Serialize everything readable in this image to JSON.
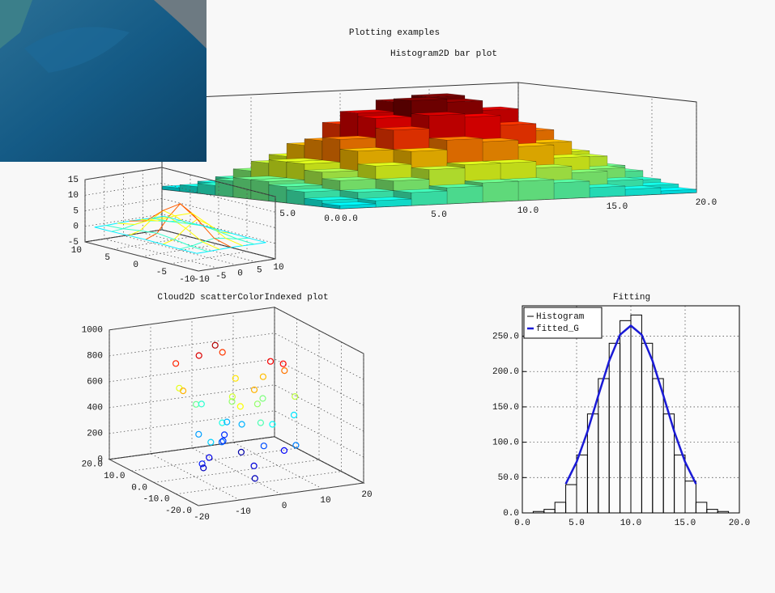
{
  "title": "Plotting examples",
  "chart_data": [
    {
      "type": "bar3d",
      "title": "Histogram2D bar plot",
      "x_bins": [
        0,
        2,
        4,
        6,
        8,
        10,
        12,
        14,
        16,
        18,
        20
      ],
      "y_bins": [
        0,
        2,
        4,
        6,
        8,
        10,
        12,
        14,
        16,
        18,
        20
      ],
      "values": [
        [
          1,
          2,
          4,
          5,
          6,
          6,
          5,
          3,
          2,
          1
        ],
        [
          2,
          4,
          7,
          10,
          11,
          11,
          9,
          7,
          4,
          2
        ],
        [
          4,
          7,
          11,
          15,
          18,
          17,
          15,
          11,
          7,
          3
        ],
        [
          5,
          9,
          15,
          21,
          25,
          24,
          21,
          15,
          10,
          5
        ],
        [
          6,
          11,
          18,
          24,
          29,
          28,
          25,
          18,
          11,
          6
        ],
        [
          6,
          11,
          17,
          25,
          28,
          29,
          24,
          17,
          11,
          6
        ],
        [
          5,
          10,
          15,
          21,
          24,
          25,
          21,
          15,
          9,
          5
        ],
        [
          3,
          7,
          11,
          15,
          17,
          18,
          15,
          11,
          7,
          4
        ],
        [
          2,
          4,
          7,
          9,
          11,
          11,
          10,
          7,
          4,
          2
        ],
        [
          1,
          2,
          3,
          5,
          6,
          6,
          5,
          4,
          2,
          1
        ]
      ],
      "xlim": [
        0,
        20
      ],
      "ylim": [
        0,
        20
      ],
      "xticks": [
        {
          "value": 0,
          "label": "0.0"
        },
        {
          "value": 5,
          "label": "5.0"
        },
        {
          "value": 10,
          "label": "10.0"
        },
        {
          "value": 15,
          "label": "15.0"
        },
        {
          "value": 20,
          "label": "20.0"
        }
      ],
      "yticks": [
        {
          "value": 0,
          "label": "0.0"
        },
        {
          "value": 5,
          "label": "5.0"
        }
      ]
    },
    {
      "type": "surface3d",
      "x": [
        -9,
        -6,
        -3,
        0,
        3,
        6,
        9
      ],
      "y": [
        -9,
        -6,
        -3,
        0,
        3,
        6,
        9
      ],
      "z": [
        [
          0,
          0,
          0.1,
          0.2,
          0.1,
          0,
          0
        ],
        [
          0,
          0.3,
          1.1,
          1.7,
          1.1,
          0.3,
          0
        ],
        [
          0.1,
          1.1,
          4.1,
          6.4,
          4.1,
          1.1,
          0.1
        ],
        [
          0.2,
          1.7,
          6.4,
          10,
          6.4,
          1.7,
          0.2
        ],
        [
          0.1,
          1.1,
          4.1,
          6.4,
          4.1,
          1.1,
          0.1
        ],
        [
          0,
          0.3,
          1.1,
          1.7,
          1.1,
          0.3,
          0
        ],
        [
          0,
          0,
          0.1,
          0.2,
          0.1,
          0,
          0
        ]
      ],
      "xlim": [
        -10,
        10
      ],
      "ylim": [
        -10,
        10
      ],
      "zlim": [
        -5,
        15
      ],
      "xticks": [
        -10,
        -5,
        0,
        5,
        10
      ],
      "yticks": [
        -10,
        -5,
        0,
        5,
        10
      ],
      "zticks": [
        -5,
        0,
        5,
        10,
        15
      ]
    },
    {
      "type": "scatter3d",
      "title": "Cloud2D scatterColorIndexed plot",
      "x": [
        -3,
        5,
        -8,
        2,
        10,
        -12,
        0,
        7,
        -5,
        3,
        -1,
        12,
        -9,
        4,
        -6,
        1,
        8,
        -2,
        6,
        -4,
        15,
        -10,
        2,
        -7,
        9,
        -3,
        5,
        0,
        -11,
        3,
        11,
        -5,
        1,
        -8,
        6,
        -2,
        4,
        -14,
        7,
        0
      ],
      "y": [
        4,
        -6,
        2,
        10,
        -3,
        5,
        -8,
        1,
        -11,
        6,
        0,
        -4,
        9,
        -2,
        7,
        -9,
        3,
        12,
        -5,
        -1,
        2,
        -7,
        8,
        4,
        -10,
        1,
        -3,
        6,
        -5,
        11,
        -1,
        3,
        -6,
        0,
        9,
        -12,
        5,
        -2,
        -8,
        2
      ],
      "z": [
        950,
        880,
        910,
        820,
        760,
        840,
        700,
        690,
        620,
        650,
        580,
        560,
        600,
        520,
        480,
        450,
        500,
        420,
        380,
        400,
        350,
        330,
        300,
        280,
        250,
        230,
        200,
        180,
        150,
        170,
        120,
        100,
        90,
        60,
        40,
        60,
        300,
        700,
        870,
        520
      ],
      "xlim": [
        -20,
        20
      ],
      "ylim": [
        -20,
        20
      ],
      "zlim": [
        0,
        1000
      ],
      "xticks": [
        -20,
        -10,
        0,
        10,
        20
      ],
      "yticks": [
        {
          "value": -20,
          "label": "-20.0"
        },
        {
          "value": -10,
          "label": "-10.0"
        },
        {
          "value": 0,
          "label": "0.0"
        },
        {
          "value": 10,
          "label": "10.0"
        },
        {
          "value": 20,
          "label": "20.0"
        }
      ],
      "zticks": [
        0,
        200,
        400,
        600,
        800,
        1000
      ]
    },
    {
      "type": "histogram",
      "title": "Fitting",
      "bins": [
        0,
        1,
        2,
        3,
        4,
        5,
        6,
        7,
        8,
        9,
        10,
        11,
        12,
        13,
        14,
        15,
        16,
        17,
        18,
        19,
        20
      ],
      "series": [
        {
          "name": "Histogram",
          "color": "#000000",
          "values": [
            0,
            2,
            5,
            15,
            40,
            82,
            140,
            190,
            240,
            272,
            280,
            240,
            190,
            140,
            82,
            45,
            15,
            5,
            2,
            0
          ]
        },
        {
          "name": "fitted_G",
          "color": "#1a1ad6",
          "x": [
            4,
            5,
            6,
            7,
            8,
            9,
            10,
            11,
            12,
            13,
            14,
            15,
            16
          ],
          "values": [
            41,
            72,
            115,
            166,
            215,
            252,
            265,
            252,
            215,
            166,
            115,
            72,
            41
          ]
        }
      ],
      "xlim": [
        0,
        20
      ],
      "ylim": [
        0,
        293
      ],
      "xticks": [
        {
          "value": 0,
          "label": "0.0"
        },
        {
          "value": 5,
          "label": "5.0"
        },
        {
          "value": 10,
          "label": "10.0"
        },
        {
          "value": 15,
          "label": "15.0"
        },
        {
          "value": 20,
          "label": "20.0"
        }
      ],
      "yticks": [
        {
          "value": 0,
          "label": "0.0"
        },
        {
          "value": 50,
          "label": "50.0"
        },
        {
          "value": 100,
          "label": "100.0"
        },
        {
          "value": 150,
          "label": "150.0"
        },
        {
          "value": 200,
          "label": "200.0"
        },
        {
          "value": 250,
          "label": "250.0"
        }
      ],
      "grid": true,
      "legend": "upper left"
    }
  ]
}
